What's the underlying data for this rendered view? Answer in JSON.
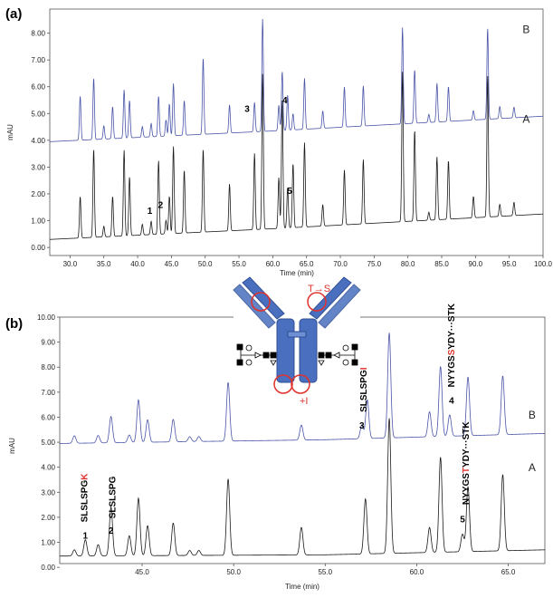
{
  "chart_data": [
    {
      "type": "line",
      "panel_label": "(a)",
      "xlabel": "Time (min)",
      "ylabel": "mAU",
      "xlim": [
        27,
        100
      ],
      "ylim": [
        -0.3,
        8.9
      ],
      "x_ticks": [
        "30.0",
        "35.0",
        "40.0",
        "45.0",
        "50.0",
        "55.0",
        "60.0",
        "65.0",
        "70.0",
        "75.0",
        "80.0",
        "85.0",
        "90.0",
        "95.0",
        "100.0"
      ],
      "y_ticks": [
        "0.00",
        "1.00",
        "2.00",
        "3.00",
        "4.00",
        "5.00",
        "6.00",
        "7.00",
        "8.00"
      ],
      "grid": false,
      "series": [
        {
          "name": "B",
          "color": "#4a55a8",
          "baseline": [
            [
              27,
              3.95
            ],
            [
              60,
              4.35
            ],
            [
              100,
              4.9
            ]
          ],
          "peaks": [
            [
              31.5,
              1.65
            ],
            [
              33.5,
              2.3
            ],
            [
              35,
              0.5
            ],
            [
              36.3,
              1.2
            ],
            [
              38,
              1.8
            ],
            [
              38.8,
              1.4
            ],
            [
              40.7,
              0.4
            ],
            [
              42,
              0.5
            ],
            [
              43.1,
              1.5
            ],
            [
              44.2,
              0.6
            ],
            [
              44.7,
              1.2
            ],
            [
              45.3,
              1.95
            ],
            [
              46.9,
              1.3
            ],
            [
              49.7,
              2.85
            ],
            [
              53.6,
              1.05
            ],
            [
              57.3,
              1.1
            ],
            [
              58.5,
              4.2
            ],
            [
              60.9,
              0.95
            ],
            [
              61.4,
              2.2
            ],
            [
              62.2,
              1.3
            ],
            [
              63.0,
              0.6
            ],
            [
              64.7,
              1.9
            ],
            [
              67.4,
              0.65
            ],
            [
              70.6,
              1.5
            ],
            [
              73.4,
              1.5
            ],
            [
              79.2,
              3.6
            ],
            [
              81,
              2.0
            ],
            [
              83.1,
              0.3
            ],
            [
              84.3,
              1.45
            ],
            [
              86,
              1.3
            ],
            [
              89.7,
              0.35
            ],
            [
              91.8,
              3.4
            ],
            [
              93.6,
              0.45
            ],
            [
              95.7,
              0.4
            ]
          ]
        },
        {
          "name": "A",
          "color": "#1a1a1a",
          "baseline": [
            [
              27,
              0.3
            ],
            [
              60,
              0.7
            ],
            [
              100,
              1.25
            ]
          ],
          "peaks": [
            [
              31.5,
              1.55
            ],
            [
              33.5,
              3.3
            ],
            [
              35,
              0.4
            ],
            [
              36.3,
              1.5
            ],
            [
              38,
              3.2
            ],
            [
              38.8,
              2.2
            ],
            [
              40.7,
              0.4
            ],
            [
              42,
              0.5
            ],
            [
              43.1,
              2.75
            ],
            [
              44.2,
              0.5
            ],
            [
              44.7,
              1.4
            ],
            [
              45.3,
              3.25
            ],
            [
              46.9,
              2.35
            ],
            [
              49.7,
              3.1
            ],
            [
              53.6,
              1.75
            ],
            [
              57.3,
              2.85
            ],
            [
              58.5,
              5.8
            ],
            [
              60.9,
              1.9
            ],
            [
              61.4,
              4.8
            ],
            [
              62.2,
              1.5
            ],
            [
              63.0,
              2.4
            ],
            [
              64.7,
              3.15
            ],
            [
              67.4,
              0.8
            ],
            [
              70.6,
              2.05
            ],
            [
              73.4,
              2.4
            ],
            [
              79.2,
              5.6
            ],
            [
              81,
              3.4
            ],
            [
              83.1,
              0.3
            ],
            [
              84.3,
              2.35
            ],
            [
              86,
              2.2
            ],
            [
              89.7,
              0.8
            ],
            [
              91.8,
              5.3
            ],
            [
              93.6,
              0.45
            ],
            [
              95.7,
              0.5
            ]
          ]
        }
      ],
      "trace_labels": [
        {
          "text": "B",
          "x": 97.5,
          "y": 8.0
        },
        {
          "text": "A",
          "x": 97.5,
          "y": 4.65
        }
      ],
      "peak_labels": [
        {
          "text": "1",
          "x": 41.8,
          "y": 1.25
        },
        {
          "text": "2",
          "x": 43.4,
          "y": 1.47
        },
        {
          "text": "3",
          "x": 56.2,
          "y": 5.06
        },
        {
          "text": "4",
          "x": 61.8,
          "y": 5.38
        },
        {
          "text": "5",
          "x": 62.5,
          "y": 2.0
        }
      ]
    },
    {
      "type": "line",
      "panel_label": "(b)",
      "xlabel": "Time (min)",
      "ylabel": "mAU",
      "xlim": [
        40.5,
        67
      ],
      "ylim": [
        0.15,
        10
      ],
      "x_ticks": [
        "45.0",
        "50.0",
        "55.0",
        "60.0",
        "65.0"
      ],
      "y_ticks": [
        "0.00",
        "1.00",
        "2.00",
        "3.00",
        "4.00",
        "5.00",
        "6.00",
        "7.00",
        "8.00",
        "9.00",
        "10.00"
      ],
      "grid": false,
      "series": [
        {
          "name": "B",
          "color": "#4a55a8",
          "baseline": [
            [
              40.5,
              4.95
            ],
            [
              55,
              5.1
            ],
            [
              67,
              5.35
            ]
          ],
          "peaks": [
            [
              41.3,
              0.3
            ],
            [
              42.6,
              0.3
            ],
            [
              43.3,
              1.05
            ],
            [
              44.3,
              0.3
            ],
            [
              44.8,
              1.7
            ],
            [
              45.3,
              0.9
            ],
            [
              46.7,
              0.9
            ],
            [
              47.6,
              0.2
            ],
            [
              48.1,
              0.2
            ],
            [
              49.7,
              2.35
            ],
            [
              53.7,
              0.6
            ],
            [
              57.0,
              0.55
            ],
            [
              57.3,
              1.55
            ],
            [
              58.5,
              4.2
            ],
            [
              60.7,
              1.0
            ],
            [
              61.3,
              2.8
            ],
            [
              61.8,
              0.85
            ],
            [
              62.8,
              2.35
            ],
            [
              64.7,
              2.35
            ]
          ]
        },
        {
          "name": "A",
          "color": "#1a1a1a",
          "baseline": [
            [
              40.5,
              0.45
            ],
            [
              55,
              0.5
            ],
            [
              67,
              0.7
            ]
          ],
          "peaks": [
            [
              41.3,
              0.25
            ],
            [
              41.9,
              0.65
            ],
            [
              42.6,
              0.45
            ],
            [
              43.3,
              1.95
            ],
            [
              44.3,
              0.8
            ],
            [
              44.8,
              2.3
            ],
            [
              45.3,
              1.2
            ],
            [
              46.7,
              1.3
            ],
            [
              47.6,
              0.2
            ],
            [
              48.1,
              0.2
            ],
            [
              49.7,
              3.05
            ],
            [
              53.7,
              1.1
            ],
            [
              57.2,
              2.2
            ],
            [
              58.5,
              5.4
            ],
            [
              60.7,
              1.0
            ],
            [
              61.3,
              3.8
            ],
            [
              62.5,
              0.7
            ],
            [
              62.8,
              2.6
            ],
            [
              64.7,
              3.05
            ]
          ]
        }
      ],
      "trace_labels": [
        {
          "text": "B",
          "x": 66.3,
          "y": 5.95
        },
        {
          "text": "A",
          "x": 66.3,
          "y": 3.85
        }
      ],
      "peak_labels": [
        {
          "text": "1",
          "x": 41.9,
          "y": 1.15
        },
        {
          "text": "2",
          "x": 43.3,
          "y": 1.35
        },
        {
          "text": "3",
          "x": 57.0,
          "y": 5.55
        },
        {
          "text": "4",
          "x": 61.9,
          "y": 6.55
        },
        {
          "text": "5",
          "x": 62.5,
          "y": 1.8
        }
      ],
      "sequence_labels": [
        {
          "parts": [
            {
              "text": "SLSLSPG",
              "red": false
            },
            {
              "text": "K",
              "red": true
            }
          ],
          "x": 41.85,
          "y": 1.8
        },
        {
          "parts": [
            {
              "text": "SLSLSPG",
              "red": false
            }
          ],
          "x": 43.4,
          "y": 1.95
        },
        {
          "parts": [
            {
              "text": "SLSLSPG",
              "red": false
            },
            {
              "text": "I",
              "red": true
            }
          ],
          "x": 57.1,
          "y": 6.2
        },
        {
          "parts": [
            {
              "text": "NYYGS",
              "red": false
            },
            {
              "text": "S",
              "red": true
            },
            {
              "text": "YDY···STK",
              "red": false
            }
          ],
          "x": 61.9,
          "y": 7.2
        },
        {
          "parts": [
            {
              "text": "NYYGS",
              "red": false
            },
            {
              "text": "T",
              "red": true
            },
            {
              "text": "YDY···STK",
              "red": false
            }
          ],
          "x": 62.7,
          "y": 2.5
        }
      ],
      "inset": {
        "icon": "antibody-diagram-icon",
        "annotations": {
          "mutation_top": {
            "text": "T→S",
            "color": "#e0312b"
          },
          "mutation_bottom": {
            "text": "+I",
            "color": "#e0312b"
          }
        },
        "antibody_color": "#4a6fbf",
        "circle_color": "#e0312b"
      }
    }
  ]
}
